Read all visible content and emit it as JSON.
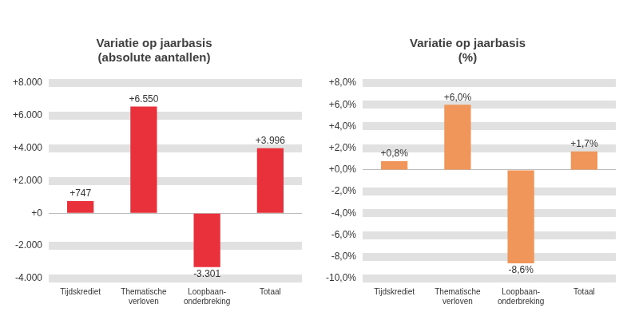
{
  "chart_data": [
    {
      "type": "bar",
      "title": [
        "Variatie op jaarbasis",
        "(absolute aantallen)"
      ],
      "categories": [
        "Tijdskrediet",
        [
          "Thematische",
          "verloven"
        ],
        [
          "Loopbaan-",
          "onderbreking"
        ],
        "Totaal"
      ],
      "values": [
        747,
        6550,
        -3301,
        3996
      ],
      "value_labels": [
        "+747",
        "+6.550",
        "-3.301",
        "+3.996"
      ],
      "data_labels": true,
      "color": "#e8313a",
      "ylim": [
        -4000,
        8000
      ],
      "yticks": [
        {
          "value": -4000,
          "label": "-4.000"
        },
        {
          "value": -2000,
          "label": "-2.000"
        },
        {
          "value": 0,
          "label": "+0"
        },
        {
          "value": 2000,
          "label": "+2.000"
        },
        {
          "value": 4000,
          "label": "+4.000"
        },
        {
          "value": 6000,
          "label": "+6.000"
        },
        {
          "value": 8000,
          "label": "+8.000"
        }
      ],
      "grid": true
    },
    {
      "type": "bar",
      "title": [
        "Variatie op jaarbasis",
        "(%)"
      ],
      "categories": [
        "Tijdskrediet",
        [
          "Thematische",
          "verloven"
        ],
        [
          "Loopbaan-",
          "onderbreking"
        ],
        "Totaal"
      ],
      "values": [
        0.8,
        6.0,
        -8.6,
        1.7
      ],
      "value_labels": [
        "+0,8%",
        "+6,0%",
        "-8,6%",
        "+1,7%"
      ],
      "data_labels": true,
      "color": "#f0965a",
      "ylim": [
        -10,
        8
      ],
      "yticks": [
        {
          "value": -10,
          "label": "-10,0%"
        },
        {
          "value": -8,
          "label": "-8,0%"
        },
        {
          "value": -6,
          "label": "-6,0%"
        },
        {
          "value": -4,
          "label": "-4,0%"
        },
        {
          "value": -2,
          "label": "-2,0%"
        },
        {
          "value": 0,
          "label": "+0,0%"
        },
        {
          "value": 2,
          "label": "+2,0%"
        },
        {
          "value": 4,
          "label": "+4,0%"
        },
        {
          "value": 6,
          "label": "+6,0%"
        },
        {
          "value": 8,
          "label": "+8,0%"
        }
      ],
      "grid": true
    }
  ]
}
